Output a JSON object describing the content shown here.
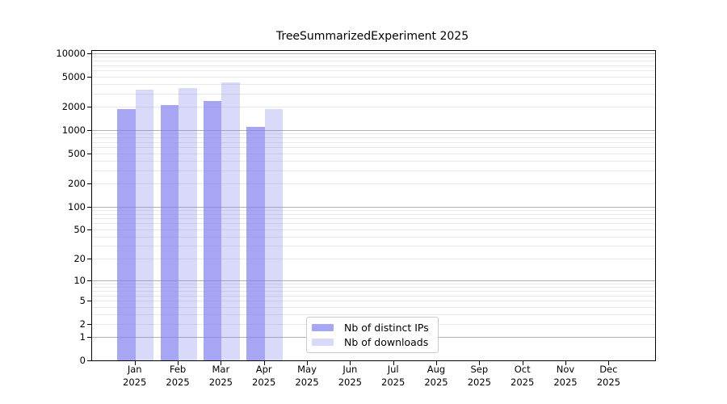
{
  "chart_data": {
    "type": "bar",
    "title": "TreeSummarizedExperiment 2025",
    "categories": [
      "Jan",
      "Feb",
      "Mar",
      "Apr",
      "May",
      "Jun",
      "Jul",
      "Aug",
      "Sep",
      "Oct",
      "Nov",
      "Dec"
    ],
    "category_year_label": "2025",
    "series": [
      {
        "name": "Nb of distinct IPs",
        "color": "rgba(128,128,240,0.7)",
        "values": [
          1900,
          2100,
          2400,
          1100,
          null,
          null,
          null,
          null,
          null,
          null,
          null,
          null
        ]
      },
      {
        "name": "Nb of downloads",
        "color": "rgba(128,128,240,0.3)",
        "values": [
          3400,
          3500,
          4200,
          1900,
          null,
          null,
          null,
          null,
          null,
          null,
          null,
          null
        ]
      }
    ],
    "y_ticks": [
      0,
      1,
      2,
      5,
      10,
      20,
      50,
      100,
      200,
      500,
      1000,
      2000,
      5000,
      10000
    ],
    "y_scale": "log10(1+v)",
    "ylim": [
      0,
      10000
    ],
    "xlabel": "",
    "ylabel": "",
    "grid": true,
    "grid_minor_color": "#e9e9e9",
    "grid_major_color": "#b0b0b0",
    "axis_color": "#000000",
    "legend_position": "bottom-center"
  }
}
